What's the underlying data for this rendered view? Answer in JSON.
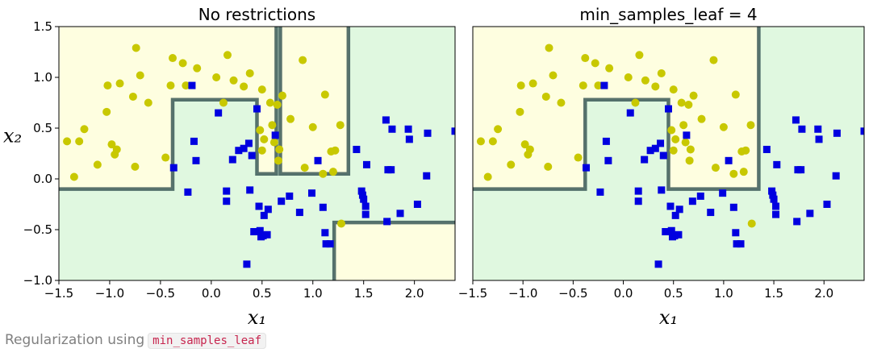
{
  "chart_data": [
    {
      "type": "scatter",
      "title": "No restrictions",
      "xlabel": "x₁",
      "ylabel": "x₂",
      "xlim": [
        -1.5,
        2.4
      ],
      "ylim": [
        -1.0,
        1.5
      ],
      "xticks": [
        "−1.5",
        "−1.0",
        "−0.5",
        "0.0",
        "0.5",
        "1.0",
        "1.5",
        "2.0"
      ],
      "yticks": [
        "−1.0",
        "−0.5",
        "0.0",
        "0.5",
        "1.0",
        "1.5"
      ],
      "grid": false,
      "regions": [
        {
          "class": "yellow",
          "color": "#fefee0",
          "polygon": [
            [
              -1.5,
              1.5
            ],
            [
              0.64,
              1.5
            ],
            [
              0.64,
              0.05
            ],
            [
              0.45,
              0.05
            ],
            [
              0.45,
              0.78
            ],
            [
              -0.38,
              0.78
            ],
            [
              -0.38,
              -0.1
            ],
            [
              -1.5,
              -0.1
            ]
          ]
        },
        {
          "class": "yellow",
          "color": "#fefee0",
          "polygon": [
            [
              0.68,
              1.5
            ],
            [
              1.35,
              1.5
            ],
            [
              1.35,
              0.05
            ],
            [
              0.68,
              0.05
            ]
          ]
        },
        {
          "class": "yellow",
          "color": "#fefee0",
          "polygon": [
            [
              1.21,
              -0.43
            ],
            [
              2.4,
              -0.43
            ],
            [
              2.4,
              -1.0
            ],
            [
              1.21,
              -1.0
            ]
          ]
        }
      ],
      "background_color": "#e0f8e0",
      "boundaries": [
        [
          [
            -1.5,
            -0.1
          ],
          [
            -0.38,
            -0.1
          ],
          [
            -0.38,
            0.78
          ],
          [
            0.45,
            0.78
          ],
          [
            0.45,
            0.05
          ],
          [
            0.64,
            0.05
          ],
          [
            0.64,
            1.5
          ]
        ],
        [
          [
            0.68,
            1.5
          ],
          [
            0.68,
            0.05
          ],
          [
            1.35,
            0.05
          ],
          [
            1.35,
            1.5
          ]
        ],
        [
          [
            1.21,
            -1.0
          ],
          [
            1.21,
            -0.43
          ],
          [
            2.4,
            -0.43
          ]
        ]
      ],
      "series": [
        {
          "marker": "circle",
          "color": "#c8c800",
          "points": [
            [
              -1.42,
              0.37
            ],
            [
              -1.35,
              0.02
            ],
            [
              -1.3,
              0.37
            ],
            [
              -1.25,
              0.49
            ],
            [
              -1.12,
              0.14
            ],
            [
              -1.02,
              0.92
            ],
            [
              -1.03,
              0.66
            ],
            [
              -0.98,
              0.34
            ],
            [
              -0.95,
              0.24
            ],
            [
              -0.93,
              0.29
            ],
            [
              -0.9,
              0.94
            ],
            [
              -0.77,
              0.81
            ],
            [
              -0.75,
              0.12
            ],
            [
              -0.74,
              1.29
            ],
            [
              -0.7,
              1.02
            ],
            [
              -0.62,
              0.75
            ],
            [
              -0.45,
              0.21
            ],
            [
              -0.4,
              0.92
            ],
            [
              -0.38,
              1.19
            ],
            [
              -0.28,
              1.14
            ],
            [
              -0.25,
              0.92
            ],
            [
              -0.14,
              1.09
            ],
            [
              0.05,
              1.0
            ],
            [
              0.12,
              0.75
            ],
            [
              0.16,
              1.22
            ],
            [
              0.22,
              0.97
            ],
            [
              0.32,
              0.91
            ],
            [
              0.38,
              1.04
            ],
            [
              0.48,
              0.48
            ],
            [
              0.5,
              0.28
            ],
            [
              0.52,
              0.39
            ],
            [
              0.58,
              0.75
            ],
            [
              0.65,
              0.73
            ],
            [
              0.67,
              0.29
            ],
            [
              0.7,
              0.82
            ],
            [
              0.78,
              0.59
            ],
            [
              0.9,
              1.17
            ],
            [
              0.92,
              0.11
            ],
            [
              1.0,
              0.51
            ],
            [
              1.1,
              0.05
            ],
            [
              1.12,
              0.83
            ],
            [
              1.18,
              0.27
            ],
            [
              1.22,
              0.28
            ],
            [
              1.27,
              0.53
            ],
            [
              1.28,
              -0.44
            ],
            [
              0.62,
              0.36
            ],
            [
              0.66,
              0.18
            ],
            [
              0.6,
              0.53
            ],
            [
              0.5,
              0.88
            ],
            [
              1.2,
              0.07
            ]
          ]
        },
        {
          "marker": "square",
          "color": "#0000e0",
          "points": [
            [
              -0.37,
              0.11
            ],
            [
              -0.23,
              -0.13
            ],
            [
              -0.19,
              0.92
            ],
            [
              -0.17,
              0.37
            ],
            [
              -0.15,
              0.18
            ],
            [
              0.07,
              0.65
            ],
            [
              0.15,
              -0.12
            ],
            [
              0.15,
              -0.22
            ],
            [
              0.21,
              0.19
            ],
            [
              0.27,
              0.28
            ],
            [
              0.32,
              0.3
            ],
            [
              0.35,
              -0.84
            ],
            [
              0.37,
              0.35
            ],
            [
              0.38,
              -0.11
            ],
            [
              0.4,
              0.23
            ],
            [
              0.42,
              -0.52
            ],
            [
              0.45,
              0.69
            ],
            [
              0.47,
              -0.27
            ],
            [
              0.48,
              -0.51
            ],
            [
              0.49,
              -0.57
            ],
            [
              0.51,
              -0.56
            ],
            [
              0.52,
              -0.36
            ],
            [
              0.55,
              -0.55
            ],
            [
              0.56,
              -0.3
            ],
            [
              0.63,
              0.43
            ],
            [
              0.69,
              -0.22
            ],
            [
              0.77,
              -0.17
            ],
            [
              0.87,
              -0.33
            ],
            [
              0.99,
              -0.14
            ],
            [
              1.05,
              0.18
            ],
            [
              1.1,
              -0.28
            ],
            [
              1.12,
              -0.53
            ],
            [
              1.13,
              -0.64
            ],
            [
              1.17,
              -0.64
            ],
            [
              1.43,
              0.29
            ],
            [
              1.48,
              -0.12
            ],
            [
              1.49,
              -0.16
            ],
            [
              1.5,
              -0.2
            ],
            [
              1.52,
              -0.27
            ],
            [
              1.52,
              -0.35
            ],
            [
              1.53,
              0.14
            ],
            [
              1.72,
              0.58
            ],
            [
              1.73,
              -0.42
            ],
            [
              1.74,
              0.09
            ],
            [
              1.77,
              0.09
            ],
            [
              1.78,
              0.49
            ],
            [
              1.86,
              -0.34
            ],
            [
              1.94,
              0.49
            ],
            [
              1.95,
              0.39
            ],
            [
              2.03,
              -0.25
            ],
            [
              2.12,
              0.03
            ],
            [
              2.13,
              0.45
            ],
            [
              2.4,
              0.47
            ]
          ]
        }
      ]
    },
    {
      "type": "scatter",
      "title": "min_samples_leaf = 4",
      "xlabel": "x₁",
      "ylabel": "",
      "xlim": [
        -1.5,
        2.4
      ],
      "ylim": [
        -1.0,
        1.5
      ],
      "xticks": [
        "−1.5",
        "−1.0",
        "−0.5",
        "0.0",
        "0.5",
        "1.0",
        "1.5",
        "2.0"
      ],
      "yticks": [],
      "grid": false,
      "regions": [
        {
          "class": "yellow",
          "color": "#fefee0",
          "polygon": [
            [
              -1.5,
              1.5
            ],
            [
              1.35,
              1.5
            ],
            [
              1.35,
              -0.1
            ],
            [
              0.45,
              -0.1
            ],
            [
              0.45,
              0.78
            ],
            [
              -0.38,
              0.78
            ],
            [
              -0.38,
              -0.1
            ],
            [
              -1.5,
              -0.1
            ]
          ]
        }
      ],
      "background_color": "#e0f8e0",
      "boundaries": [
        [
          [
            -1.5,
            -0.1
          ],
          [
            -0.38,
            -0.1
          ],
          [
            -0.38,
            0.78
          ],
          [
            0.45,
            0.78
          ],
          [
            0.45,
            -0.1
          ],
          [
            1.35,
            -0.1
          ],
          [
            1.35,
            1.5
          ]
        ]
      ],
      "series": [
        {
          "marker": "circle",
          "color": "#c8c800",
          "points": [
            [
              -1.42,
              0.37
            ],
            [
              -1.35,
              0.02
            ],
            [
              -1.3,
              0.37
            ],
            [
              -1.25,
              0.49
            ],
            [
              -1.12,
              0.14
            ],
            [
              -1.02,
              0.92
            ],
            [
              -1.03,
              0.66
            ],
            [
              -0.98,
              0.34
            ],
            [
              -0.95,
              0.24
            ],
            [
              -0.93,
              0.29
            ],
            [
              -0.9,
              0.94
            ],
            [
              -0.77,
              0.81
            ],
            [
              -0.75,
              0.12
            ],
            [
              -0.74,
              1.29
            ],
            [
              -0.7,
              1.02
            ],
            [
              -0.62,
              0.75
            ],
            [
              -0.45,
              0.21
            ],
            [
              -0.4,
              0.92
            ],
            [
              -0.38,
              1.19
            ],
            [
              -0.28,
              1.14
            ],
            [
              -0.25,
              0.92
            ],
            [
              -0.14,
              1.09
            ],
            [
              0.05,
              1.0
            ],
            [
              0.12,
              0.75
            ],
            [
              0.16,
              1.22
            ],
            [
              0.22,
              0.97
            ],
            [
              0.32,
              0.91
            ],
            [
              0.38,
              1.04
            ],
            [
              0.48,
              0.48
            ],
            [
              0.5,
              0.28
            ],
            [
              0.52,
              0.39
            ],
            [
              0.58,
              0.75
            ],
            [
              0.65,
              0.73
            ],
            [
              0.67,
              0.29
            ],
            [
              0.7,
              0.82
            ],
            [
              0.78,
              0.59
            ],
            [
              0.9,
              1.17
            ],
            [
              0.92,
              0.11
            ],
            [
              1.0,
              0.51
            ],
            [
              1.1,
              0.05
            ],
            [
              1.12,
              0.83
            ],
            [
              1.18,
              0.27
            ],
            [
              1.22,
              0.28
            ],
            [
              1.27,
              0.53
            ],
            [
              1.28,
              -0.44
            ],
            [
              0.62,
              0.36
            ],
            [
              0.66,
              0.18
            ],
            [
              0.6,
              0.53
            ],
            [
              0.5,
              0.88
            ],
            [
              1.2,
              0.07
            ]
          ]
        },
        {
          "marker": "square",
          "color": "#0000e0",
          "points": [
            [
              -0.37,
              0.11
            ],
            [
              -0.23,
              -0.13
            ],
            [
              -0.19,
              0.92
            ],
            [
              -0.17,
              0.37
            ],
            [
              -0.15,
              0.18
            ],
            [
              0.07,
              0.65
            ],
            [
              0.15,
              -0.12
            ],
            [
              0.15,
              -0.22
            ],
            [
              0.21,
              0.19
            ],
            [
              0.27,
              0.28
            ],
            [
              0.32,
              0.3
            ],
            [
              0.35,
              -0.84
            ],
            [
              0.37,
              0.35
            ],
            [
              0.38,
              -0.11
            ],
            [
              0.4,
              0.23
            ],
            [
              0.42,
              -0.52
            ],
            [
              0.45,
              0.69
            ],
            [
              0.47,
              -0.27
            ],
            [
              0.48,
              -0.51
            ],
            [
              0.49,
              -0.57
            ],
            [
              0.51,
              -0.56
            ],
            [
              0.52,
              -0.36
            ],
            [
              0.55,
              -0.55
            ],
            [
              0.56,
              -0.3
            ],
            [
              0.63,
              0.43
            ],
            [
              0.69,
              -0.22
            ],
            [
              0.77,
              -0.17
            ],
            [
              0.87,
              -0.33
            ],
            [
              0.99,
              -0.14
            ],
            [
              1.05,
              0.18
            ],
            [
              1.1,
              -0.28
            ],
            [
              1.12,
              -0.53
            ],
            [
              1.13,
              -0.64
            ],
            [
              1.17,
              -0.64
            ],
            [
              1.43,
              0.29
            ],
            [
              1.48,
              -0.12
            ],
            [
              1.49,
              -0.16
            ],
            [
              1.5,
              -0.2
            ],
            [
              1.52,
              -0.27
            ],
            [
              1.52,
              -0.35
            ],
            [
              1.53,
              0.14
            ],
            [
              1.72,
              0.58
            ],
            [
              1.73,
              -0.42
            ],
            [
              1.74,
              0.09
            ],
            [
              1.77,
              0.09
            ],
            [
              1.78,
              0.49
            ],
            [
              1.86,
              -0.34
            ],
            [
              1.94,
              0.49
            ],
            [
              1.95,
              0.39
            ],
            [
              2.03,
              -0.25
            ],
            [
              2.12,
              0.03
            ],
            [
              2.13,
              0.45
            ],
            [
              2.4,
              0.47
            ]
          ]
        }
      ]
    }
  ],
  "caption": {
    "text": "Regularization using",
    "code": "min_samples_leaf"
  }
}
